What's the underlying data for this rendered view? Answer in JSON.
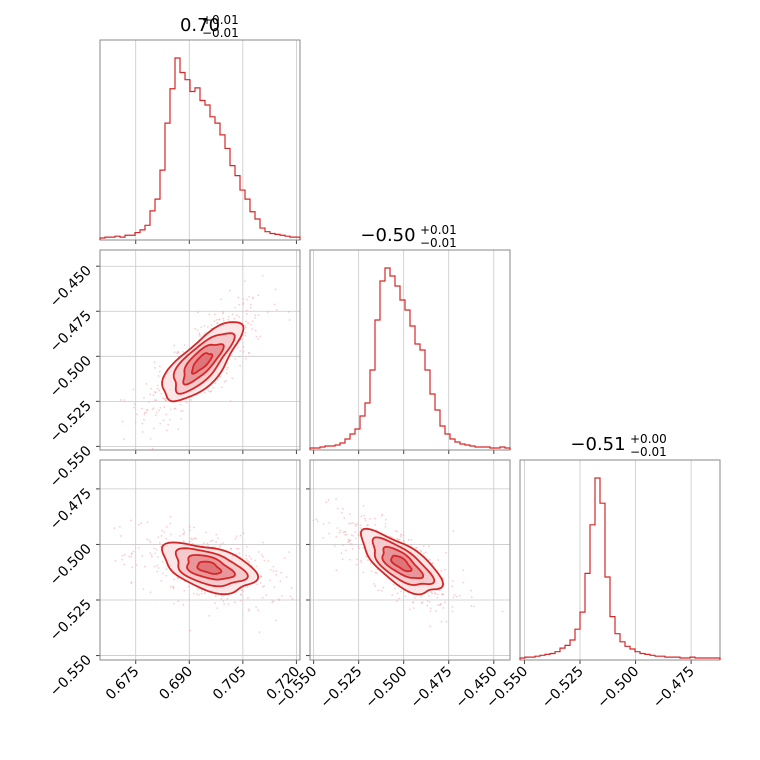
{
  "colors": {
    "accent": "#d62728",
    "fill_light": "#f3c6c8",
    "fill_mid": "#e58d91",
    "grid": "#c8c8c8",
    "frame": "#888888"
  },
  "chart_data": {
    "type": "corner",
    "parameters": [
      {
        "range": [
          0.665,
          0.721
        ],
        "ticks": [
          "0.675",
          "0.690",
          "0.705",
          "0.720"
        ],
        "tick_values": [
          0.675,
          0.69,
          0.705,
          0.72
        ]
      },
      {
        "range": [
          -0.552,
          -0.441
        ],
        "ticks": [
          "−0.550",
          "−0.525",
          "−0.500",
          "−0.475",
          "−0.450"
        ],
        "tick_values": [
          -0.55,
          -0.525,
          -0.5,
          -0.475,
          -0.45
        ]
      },
      {
        "range": [
          -0.552,
          -0.462
        ],
        "ticks": [
          "−0.550",
          "−0.525",
          "−0.500",
          "−0.475"
        ],
        "tick_values": [
          -0.55,
          -0.525,
          -0.5,
          -0.475
        ]
      }
    ],
    "titles": [
      {
        "median": "0.70",
        "upper": "+0.01",
        "lower": "−0.01"
      },
      {
        "median": "−0.50",
        "upper": "+0.01",
        "lower": "−0.01"
      },
      {
        "median": "−0.51",
        "upper": "+0.00",
        "lower": "−0.01"
      }
    ],
    "histograms": [
      {
        "edges_range": [
          0.665,
          0.721
        ],
        "counts": [
          0,
          1,
          1,
          2,
          1,
          3,
          3,
          6,
          9,
          14,
          30,
          43,
          75,
          127,
          165,
          199,
          183,
          175,
          162,
          166,
          152,
          147,
          134,
          127,
          114,
          99,
          80,
          69,
          53,
          43,
          29,
          21,
          11,
          7,
          5,
          4,
          3,
          2,
          1,
          1
        ]
      },
      {
        "edges_range": [
          -0.552,
          -0.441
        ],
        "counts": [
          0,
          0,
          1,
          2,
          2,
          3,
          5,
          9,
          14,
          19,
          32,
          45,
          78,
          128,
          167,
          180,
          172,
          162,
          148,
          138,
          122,
          104,
          98,
          78,
          54,
          38,
          22,
          14,
          9,
          6,
          4,
          3,
          2,
          1,
          1,
          1,
          0,
          0,
          1,
          0
        ]
      },
      {
        "edges_range": [
          -0.552,
          -0.462
        ],
        "counts": [
          0,
          1,
          1,
          2,
          3,
          4,
          5,
          7,
          11,
          14,
          20,
          32,
          51,
          94,
          148,
          200,
          172,
          90,
          46,
          27,
          18,
          13,
          10,
          7,
          5,
          4,
          3,
          2,
          2,
          1,
          1,
          1,
          0,
          0,
          1,
          0,
          0,
          0,
          0,
          0
        ]
      }
    ],
    "correlations": [
      {
        "pair": [
          0,
          1
        ],
        "center": [
          0.6935,
          -0.5035
        ],
        "spread": [
          0.0055,
          0.011
        ],
        "rho": 0.75
      },
      {
        "pair": [
          0,
          2
        ],
        "center": [
          0.6955,
          -0.5105
        ],
        "spread": [
          0.0065,
          0.0055
        ],
        "rho": -0.45
      },
      {
        "pair": [
          1,
          2
        ],
        "center": [
          -0.5015,
          -0.5085
        ],
        "spread": [
          0.011,
          0.007
        ],
        "rho": -0.7
      }
    ],
    "contour_levels_sigma": [
      0.5,
      1.0,
      1.5,
      2.0
    ],
    "grid": true
  }
}
